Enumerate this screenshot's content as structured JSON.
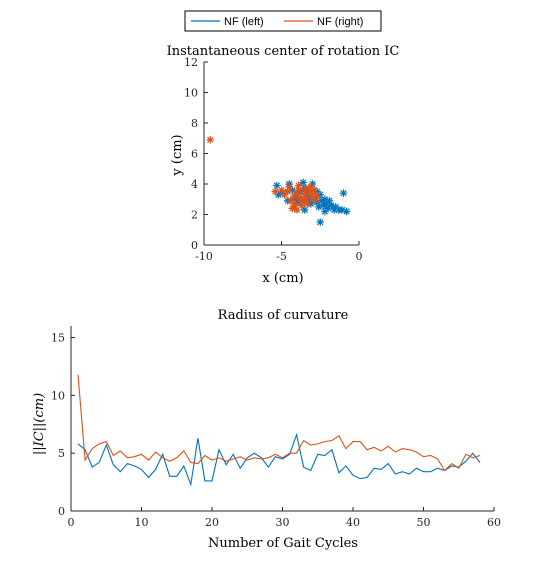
{
  "legend": {
    "items": [
      {
        "label": "NF (left)",
        "color": "#0072BD"
      },
      {
        "label": "NF (right)",
        "color": "#D95319"
      }
    ]
  },
  "chart_data": [
    {
      "type": "scatter",
      "title": "Instantaneous center of rotation IC",
      "xlabel": "x (cm)",
      "ylabel": "y (cm)",
      "xlim": [
        -10,
        0
      ],
      "ylim": [
        0,
        12
      ],
      "xticks": [
        -10,
        -5,
        0
      ],
      "yticks": [
        0,
        2,
        4,
        6,
        8,
        10,
        12
      ],
      "marker": "asterisk",
      "series": [
        {
          "name": "NF (left)",
          "color": "#0072BD",
          "points": [
            [
              -5.3,
              3.9
            ],
            [
              -5.2,
              3.3
            ],
            [
              -4.9,
              3.4
            ],
            [
              -4.5,
              4.0
            ],
            [
              -4.3,
              3.6
            ],
            [
              -4.1,
              3.1
            ],
            [
              -3.8,
              3.5
            ],
            [
              -3.6,
              4.1
            ],
            [
              -3.5,
              3.7
            ],
            [
              -3.3,
              3.3
            ],
            [
              -3.0,
              4.0
            ],
            [
              -2.9,
              3.6
            ],
            [
              -2.8,
              3.1
            ],
            [
              -2.7,
              2.8
            ],
            [
              -2.6,
              2.5
            ],
            [
              -2.5,
              3.3
            ],
            [
              -2.4,
              2.9
            ],
            [
              -2.3,
              2.6
            ],
            [
              -2.2,
              3.0
            ],
            [
              -2.1,
              2.7
            ],
            [
              -2.0,
              2.4
            ],
            [
              -1.9,
              2.9
            ],
            [
              -1.8,
              2.6
            ],
            [
              -1.6,
              2.3
            ],
            [
              -1.5,
              2.5
            ],
            [
              -1.3,
              2.3
            ],
            [
              -1.1,
              2.3
            ],
            [
              -0.8,
              2.2
            ],
            [
              -1.0,
              3.4
            ],
            [
              -2.5,
              1.5
            ],
            [
              -3.5,
              2.3
            ],
            [
              -4.0,
              2.8
            ],
            [
              -3.1,
              2.7
            ],
            [
              -2.7,
              3.5
            ],
            [
              -3.9,
              3.0
            ],
            [
              -4.6,
              2.9
            ],
            [
              -3.2,
              3.0
            ],
            [
              -2.2,
              2.2
            ]
          ]
        },
        {
          "name": "NF (right)",
          "color": "#D95319",
          "points": [
            [
              -9.6,
              6.9
            ],
            [
              -5.4,
              3.5
            ],
            [
              -5.0,
              3.6
            ],
            [
              -4.8,
              3.3
            ],
            [
              -4.6,
              3.5
            ],
            [
              -4.4,
              2.9
            ],
            [
              -4.3,
              2.4
            ],
            [
              -4.2,
              3.2
            ],
            [
              -4.1,
              2.7
            ],
            [
              -4.0,
              3.5
            ],
            [
              -3.9,
              3.1
            ],
            [
              -3.8,
              3.6
            ],
            [
              -3.7,
              2.6
            ],
            [
              -3.6,
              2.9
            ],
            [
              -3.5,
              3.3
            ],
            [
              -3.4,
              3.7
            ],
            [
              -3.3,
              3.1
            ],
            [
              -3.2,
              3.5
            ],
            [
              -3.1,
              3.8
            ],
            [
              -3.0,
              3.3
            ],
            [
              -2.9,
              3.6
            ],
            [
              -2.8,
              2.9
            ],
            [
              -3.7,
              3.0
            ],
            [
              -4.0,
              2.3
            ],
            [
              -3.5,
              2.8
            ],
            [
              -4.5,
              3.8
            ],
            [
              -3.9,
              3.9
            ],
            [
              -3.3,
              2.7
            ],
            [
              -2.7,
              3.2
            ],
            [
              -4.2,
              2.5
            ]
          ]
        }
      ]
    },
    {
      "type": "line",
      "title": "Radius of curvature",
      "xlabel": "Number of Gait Cycles",
      "ylabel": "||IC||(cm)",
      "xlim": [
        0,
        60
      ],
      "ylim": [
        0,
        16
      ],
      "xticks": [
        0,
        10,
        20,
        30,
        40,
        50,
        60
      ],
      "yticks": [
        0,
        5,
        10,
        15
      ],
      "x": [
        1,
        2,
        3,
        4,
        5,
        6,
        7,
        8,
        9,
        10,
        11,
        12,
        13,
        14,
        15,
        16,
        17,
        18,
        19,
        20,
        21,
        22,
        23,
        24,
        25,
        26,
        27,
        28,
        29,
        30,
        31,
        32,
        33,
        34,
        35,
        36,
        37,
        38,
        39,
        40,
        41,
        42,
        43,
        44,
        45,
        46,
        47,
        48,
        49,
        50,
        51,
        52,
        53,
        54,
        55,
        56,
        57,
        58
      ],
      "series": [
        {
          "name": "NF (left)",
          "color": "#0072BD",
          "values": [
            5.8,
            5.3,
            3.8,
            4.2,
            5.7,
            4.0,
            3.4,
            4.1,
            3.9,
            3.6,
            2.9,
            3.6,
            4.9,
            3.0,
            3.0,
            3.9,
            2.3,
            6.3,
            2.6,
            2.6,
            5.3,
            4.0,
            4.9,
            3.7,
            4.6,
            5.0,
            4.6,
            3.8,
            4.7,
            4.5,
            4.9,
            6.6,
            3.8,
            3.5,
            4.9,
            4.8,
            5.3,
            3.3,
            3.9,
            3.1,
            2.8,
            2.9,
            3.7,
            3.6,
            4.1,
            3.2,
            3.4,
            3.2,
            3.7,
            3.4,
            3.4,
            3.7,
            3.5,
            3.9,
            3.8,
            4.3,
            5.0,
            4.2
          ]
        },
        {
          "name": "NF (right)",
          "color": "#D95319",
          "values": [
            11.8,
            4.4,
            5.4,
            5.8,
            6.0,
            4.8,
            5.2,
            4.6,
            4.7,
            4.9,
            4.4,
            5.1,
            4.6,
            4.3,
            4.6,
            5.2,
            4.2,
            4.1,
            4.8,
            4.4,
            4.6,
            4.3,
            4.5,
            4.7,
            4.4,
            4.6,
            4.5,
            4.6,
            4.9,
            4.6,
            5.0,
            5.0,
            6.1,
            5.7,
            5.8,
            6.0,
            6.1,
            6.5,
            5.4,
            6.0,
            6.0,
            5.3,
            5.5,
            5.2,
            5.6,
            5.1,
            5.4,
            5.3,
            5.1,
            4.7,
            4.8,
            4.5,
            3.5,
            4.1,
            3.7,
            4.9,
            4.6,
            4.8
          ]
        }
      ]
    }
  ]
}
